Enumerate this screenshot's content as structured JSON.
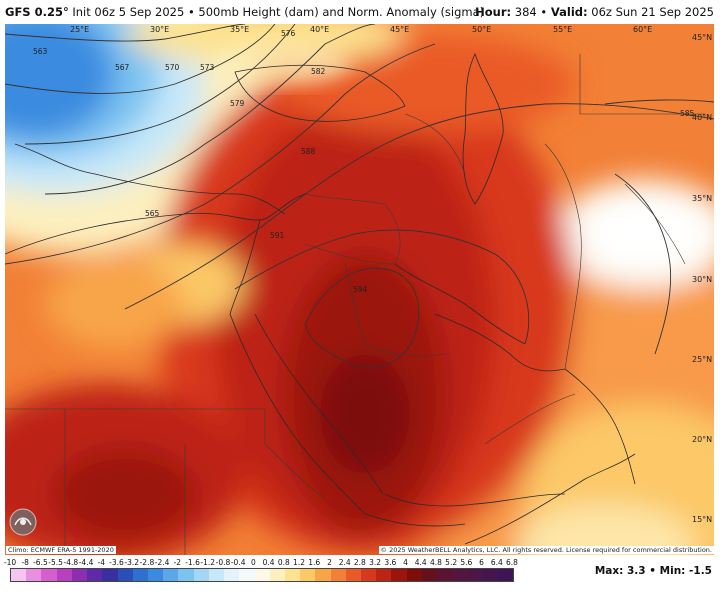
{
  "header": {
    "model": "GFS 0.25°",
    "init": "Init 06z 5 Sep 2025",
    "product": "500mb Height (dam) and Norm. Anomaly (sigma)",
    "hour_label": "Hour:",
    "hour": "384",
    "valid_label": "Valid:",
    "valid": "06z Sun 21 Sep 2025"
  },
  "map": {
    "lon_labels": [
      "25°E",
      "30°E",
      "35°E",
      "40°E",
      "45°E",
      "50°E",
      "55°E",
      "60°E"
    ],
    "lat_labels": [
      "45°N",
      "40°N",
      "35°N",
      "30°N",
      "25°N",
      "20°N",
      "15°N"
    ],
    "contour_labels": [
      "567",
      "570",
      "573",
      "576",
      "579",
      "582",
      "585",
      "588",
      "591",
      "594",
      "565",
      "563",
      "585"
    ],
    "logo_icon": "weatherbell-logo-icon"
  },
  "footer": {
    "climo": "Climo: ECMWF ERA-5 1991-2020",
    "copyright": "© 2025 WeatherBELL Analytics, LLC. All rights reserved. License required for commercial distribution.",
    "max_label": "Max:",
    "max": "3.3",
    "min_label": "Min:",
    "min": "-1.5"
  },
  "colorbar": {
    "ticks": [
      "-10",
      "-8",
      "-6.5",
      "-5.5",
      "-4.8",
      "-4.4",
      "-4",
      "-3.6",
      "-3.2",
      "-2.8",
      "-2.4",
      "-2",
      "-1.6",
      "-1.2",
      "-0.8",
      "-0.4",
      "0",
      "0.4",
      "0.8",
      "1.2",
      "1.6",
      "2",
      "2.4",
      "2.8",
      "3.2",
      "3.6",
      "4",
      "4.4",
      "4.8",
      "5.2",
      "5.6",
      "6",
      "6.4",
      "6.8"
    ],
    "colors": [
      "#f7c6f0",
      "#e98ee0",
      "#d65fd0",
      "#b73fc0",
      "#8b2fb0",
      "#5f2aa8",
      "#3a2fa0",
      "#2a4fb8",
      "#2f6fd0",
      "#3a8be0",
      "#5aa8ea",
      "#7cc3f2",
      "#a2d8f6",
      "#c6e8f9",
      "#e4f3fb",
      "#f4f9fc",
      "#fdf9e6",
      "#fdf0bf",
      "#fde28f",
      "#fcc868",
      "#f8a548",
      "#f28036",
      "#ea5a28",
      "#d8391c",
      "#bd2412",
      "#9b150c",
      "#7d0e0a",
      "#65101c",
      "#5a1431",
      "#54163f",
      "#4d1648",
      "#451550",
      "#3e1457"
    ]
  }
}
